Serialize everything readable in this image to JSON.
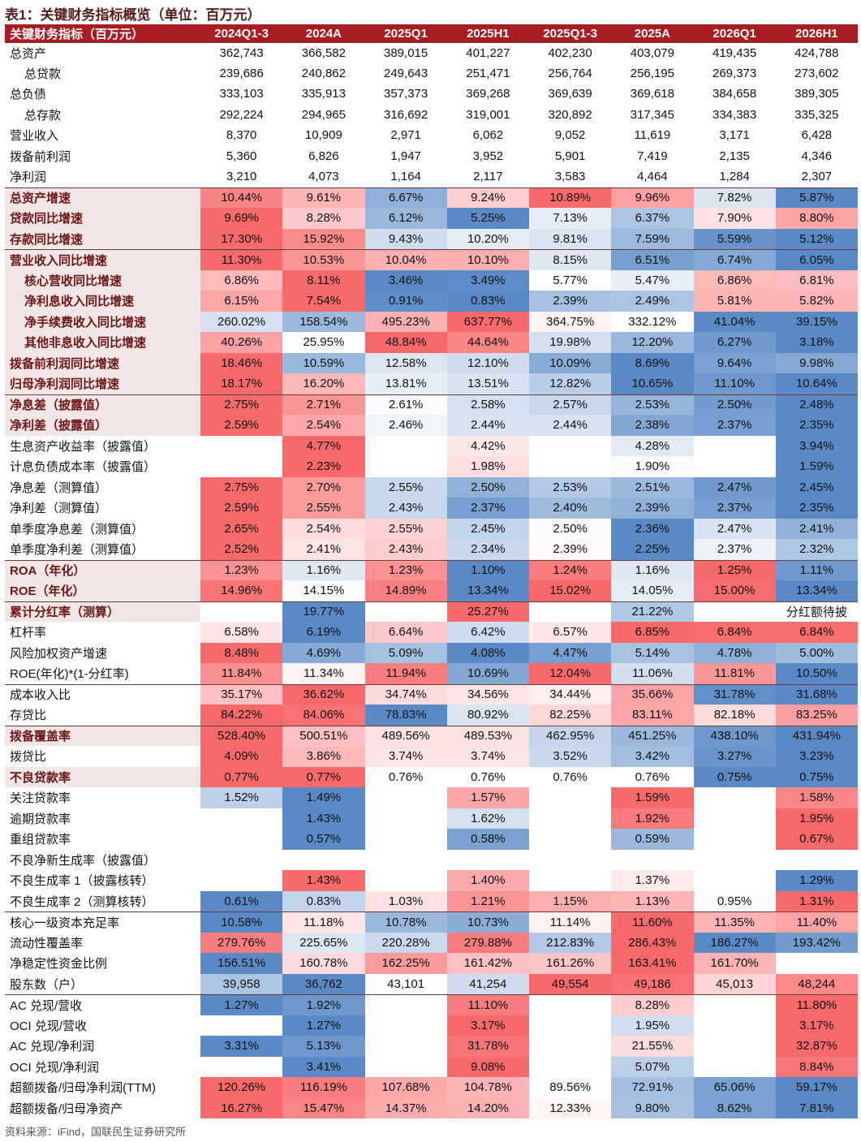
{
  "title": "表1：关键财务指标概览（单位：百万元）",
  "table": {
    "header": [
      "关键财务指标（百万元）",
      "2024Q1-3",
      "2024A",
      "2025Q1",
      "2025H1",
      "2025Q1-3",
      "2025A",
      "2026Q1",
      "2026H1"
    ],
    "sections": [
      {
        "heatmap": false,
        "rows": [
          {
            "label": "总资产",
            "cells": [
              "362,743",
              "366,582",
              "389,015",
              "401,227",
              "402,230",
              "403,079",
              "419,435",
              "424,788"
            ]
          },
          {
            "label": "总贷款",
            "indent": true,
            "cells": [
              "239,686",
              "240,862",
              "249,643",
              "251,471",
              "256,764",
              "256,195",
              "269,373",
              "273,602"
            ]
          },
          {
            "label": "总负债",
            "cells": [
              "333,103",
              "335,913",
              "357,373",
              "369,268",
              "369,639",
              "369,618",
              "384,658",
              "389,305"
            ]
          },
          {
            "label": "总存款",
            "indent": true,
            "cells": [
              "292,224",
              "294,965",
              "316,692",
              "319,001",
              "320,892",
              "317,345",
              "334,383",
              "335,325"
            ]
          },
          {
            "label": "营业收入",
            "cells": [
              "8,370",
              "10,909",
              "2,971",
              "6,062",
              "9,052",
              "11,619",
              "3,171",
              "6,428"
            ]
          },
          {
            "label": "拨备前利润",
            "cells": [
              "5,360",
              "6,826",
              "1,947",
              "3,952",
              "5,901",
              "7,419",
              "2,135",
              "4,346"
            ]
          },
          {
            "label": "净利润",
            "cells": [
              "3,210",
              "4,073",
              "1,164",
              "2,117",
              "3,583",
              "4,464",
              "1,284",
              "2,307"
            ]
          }
        ]
      },
      {
        "heatmap": true,
        "rows": [
          {
            "label": "总资产增速",
            "bold": true,
            "cells": [
              "10.44%",
              "9.61%",
              "6.67%",
              "9.24%",
              "10.89%",
              "9.96%",
              "7.82%",
              "5.87%"
            ]
          },
          {
            "label": "贷款同比增速",
            "bold": true,
            "cells": [
              "9.69%",
              "8.28%",
              "6.12%",
              "5.25%",
              "7.13%",
              "6.37%",
              "7.90%",
              "8.80%"
            ]
          },
          {
            "label": "存款同比增速",
            "bold": true,
            "cells": [
              "17.30%",
              "15.92%",
              "9.43%",
              "10.20%",
              "9.81%",
              "7.59%",
              "5.59%",
              "5.12%"
            ]
          }
        ]
      },
      {
        "heatmap": true,
        "rows": [
          {
            "label": "营业收入同比增速",
            "bold": true,
            "cells": [
              "11.30%",
              "10.53%",
              "10.04%",
              "10.10%",
              "8.15%",
              "6.51%",
              "6.74%",
              "6.05%"
            ]
          },
          {
            "label": "核心营收同比增速",
            "bold": true,
            "indent": true,
            "cells": [
              "6.86%",
              "8.11%",
              "3.46%",
              "3.49%",
              "5.77%",
              "5.47%",
              "6.86%",
              "6.81%"
            ]
          },
          {
            "label": "净利息收入同比增速",
            "bold": true,
            "indent": true,
            "cells": [
              "6.15%",
              "7.54%",
              "0.91%",
              "0.83%",
              "2.39%",
              "2.49%",
              "5.81%",
              "5.82%"
            ]
          },
          {
            "label": "净手续费收入同比增速",
            "bold": true,
            "indent": true,
            "cells": [
              "260.02%",
              "158.54%",
              "495.23%",
              "637.77%",
              "364.75%",
              "332.12%",
              "41.04%",
              "39.15%"
            ]
          },
          {
            "label": "其他非息收入同比增速",
            "bold": true,
            "indent": true,
            "cells": [
              "40.26%",
              "25.95%",
              "48.84%",
              "44.64%",
              "19.98%",
              "12.20%",
              "6.27%",
              "3.18%"
            ]
          },
          {
            "label": "拨备前利润同比增速",
            "bold": true,
            "cells": [
              "18.46%",
              "10.59%",
              "12.58%",
              "12.10%",
              "10.09%",
              "8.69%",
              "9.64%",
              "9.98%"
            ]
          },
          {
            "label": "归母净利润同比增速",
            "bold": true,
            "cells": [
              "18.17%",
              "16.20%",
              "13.81%",
              "13.51%",
              "12.82%",
              "10.65%",
              "11.10%",
              "10.64%"
            ]
          }
        ]
      },
      {
        "heatmap": true,
        "rows": [
          {
            "label": "净息差（披露值）",
            "bold": true,
            "cells": [
              "2.75%",
              "2.71%",
              "2.61%",
              "2.58%",
              "2.57%",
              "2.53%",
              "2.50%",
              "2.48%"
            ]
          },
          {
            "label": "净利差（披露值）",
            "bold": true,
            "cells": [
              "2.59%",
              "2.54%",
              "2.46%",
              "2.44%",
              "2.44%",
              "2.38%",
              "2.37%",
              "2.35%"
            ]
          },
          {
            "label": "生息资产收益率（披露值）",
            "cells": [
              null,
              "4.77%",
              null,
              "4.42%",
              null,
              "4.28%",
              null,
              "3.94%"
            ]
          },
          {
            "label": "计息负债成本率（披露值）",
            "cells": [
              null,
              "2.23%",
              null,
              "1.98%",
              null,
              "1.90%",
              null,
              "1.59%"
            ]
          },
          {
            "label": "净息差（测算值）",
            "cells": [
              "2.75%",
              "2.70%",
              "2.55%",
              "2.50%",
              "2.53%",
              "2.51%",
              "2.47%",
              "2.45%"
            ]
          },
          {
            "label": "净利差（测算值）",
            "cells": [
              "2.59%",
              "2.55%",
              "2.43%",
              "2.37%",
              "2.40%",
              "2.39%",
              "2.37%",
              "2.35%"
            ]
          },
          {
            "label": "单季度净息差（测算值）",
            "cells": [
              "2.65%",
              "2.54%",
              "2.55%",
              "2.45%",
              "2.50%",
              "2.36%",
              "2.47%",
              "2.41%"
            ]
          },
          {
            "label": "单季度净利差（测算值）",
            "cells": [
              "2.52%",
              "2.41%",
              "2.43%",
              "2.34%",
              "2.39%",
              "2.25%",
              "2.37%",
              "2.32%"
            ]
          }
        ]
      },
      {
        "heatmap": true,
        "rows": [
          {
            "label": "ROA（年化）",
            "bold": true,
            "cells": [
              "1.23%",
              "1.16%",
              "1.23%",
              "1.10%",
              "1.24%",
              "1.16%",
              "1.25%",
              "1.11%"
            ]
          },
          {
            "label": "ROE（年化）",
            "bold": true,
            "cells": [
              "14.96%",
              "14.15%",
              "14.89%",
              "13.34%",
              "15.02%",
              "14.05%",
              "15.00%",
              "13.34%"
            ]
          }
        ]
      },
      {
        "heatmap": true,
        "rows": [
          {
            "label": "累计分红率（测算）",
            "bold": true,
            "cells": [
              null,
              "19.77%",
              null,
              "25.27%",
              null,
              "21.22%",
              null,
              "分红额待披"
            ]
          },
          {
            "label": "杠杆率",
            "cells": [
              "6.58%",
              "6.19%",
              "6.64%",
              "6.42%",
              "6.57%",
              "6.85%",
              "6.84%",
              "6.84%"
            ]
          },
          {
            "label": "风险加权资产增速",
            "cells": [
              "8.48%",
              "4.69%",
              "5.09%",
              "4.08%",
              "4.47%",
              "5.14%",
              "4.78%",
              "5.00%"
            ]
          },
          {
            "label": "ROE(年化)*(1-分红率)",
            "cells": [
              "11.84%",
              "11.34%",
              "11.94%",
              "10.69%",
              "12.04%",
              "11.06%",
              "11.81%",
              "10.50%"
            ]
          }
        ]
      },
      {
        "heatmap": true,
        "rows": [
          {
            "label": "成本收入比",
            "cells": [
              "35.17%",
              "36.62%",
              "34.74%",
              "34.56%",
              "34.44%",
              "35.66%",
              "31.78%",
              "31.68%"
            ]
          },
          {
            "label": "存贷比",
            "cells": [
              "84.22%",
              "84.06%",
              "78.83%",
              "80.92%",
              "82.25%",
              "83.11%",
              "82.18%",
              "83.25%"
            ]
          }
        ]
      },
      {
        "heatmap": true,
        "rows": [
          {
            "label": "拨备覆盖率",
            "bold": true,
            "cells": [
              "528.40%",
              "500.51%",
              "489.56%",
              "489.53%",
              "462.95%",
              "451.25%",
              "438.10%",
              "431.94%"
            ]
          },
          {
            "label": "拨贷比",
            "cells": [
              "4.09%",
              "3.86%",
              "3.74%",
              "3.74%",
              "3.52%",
              "3.42%",
              "3.27%",
              "3.23%"
            ]
          },
          {
            "label": "不良贷款率",
            "bold": true,
            "cells": [
              "0.77%",
              "0.77%",
              "0.76%",
              "0.76%",
              "0.76%",
              "0.76%",
              "0.75%",
              "0.75%"
            ]
          },
          {
            "label": "关注贷款率",
            "cells": [
              "1.52%",
              "1.49%",
              null,
              "1.57%",
              null,
              "1.59%",
              null,
              "1.58%"
            ]
          },
          {
            "label": "逾期贷款率",
            "cells": [
              null,
              "1.43%",
              null,
              "1.62%",
              null,
              "1.92%",
              null,
              "1.95%"
            ]
          },
          {
            "label": "重组贷款率",
            "cells": [
              null,
              "0.57%",
              null,
              "0.58%",
              null,
              "0.59%",
              null,
              "0.67%"
            ]
          },
          {
            "label": "不良净新生成率（披露值）",
            "cells": [
              null,
              null,
              null,
              null,
              null,
              null,
              null,
              null
            ]
          },
          {
            "label": "不良生成率 1（披露核转）",
            "cells": [
              null,
              "1.43%",
              null,
              "1.40%",
              null,
              "1.37%",
              null,
              "1.29%"
            ]
          },
          {
            "label": "不良生成率 2（测算核转）",
            "cells": [
              "0.61%",
              "0.83%",
              "1.03%",
              "1.21%",
              "1.15%",
              "1.13%",
              "0.95%",
              "1.31%"
            ]
          }
        ]
      },
      {
        "heatmap": true,
        "rows": [
          {
            "label": "核心一级资本充足率",
            "cells": [
              "10.58%",
              "11.18%",
              "10.78%",
              "10.73%",
              "11.14%",
              "11.60%",
              "11.35%",
              "11.40%"
            ]
          },
          {
            "label": "流动性覆盖率",
            "cells": [
              "279.76%",
              "225.65%",
              "220.28%",
              "279.88%",
              "212.83%",
              "286.43%",
              "186.27%",
              "193.42%"
            ]
          },
          {
            "label": "净稳定性资金比例",
            "cells": [
              "156.51%",
              "160.78%",
              "162.25%",
              "161.42%",
              "161.26%",
              "163.41%",
              "161.70%",
              null
            ]
          },
          {
            "label": "股东数（户）",
            "cells": [
              "39,958",
              "36,762",
              "43,101",
              "41,254",
              "49,554",
              "49,186",
              "45,013",
              "48,244"
            ]
          }
        ]
      },
      {
        "heatmap": true,
        "rows": [
          {
            "label": "AC 兑现/营收",
            "cells": [
              "1.27%",
              "1.92%",
              null,
              "11.10%",
              null,
              "8.28%",
              null,
              "11.80%"
            ]
          },
          {
            "label": "OCI 兑现/营收",
            "cells": [
              null,
              "1.27%",
              null,
              "3.17%",
              null,
              "1.95%",
              null,
              "3.17%"
            ]
          },
          {
            "label": "AC 兑现/净利润",
            "cells": [
              "3.31%",
              "5.13%",
              null,
              "31.78%",
              null,
              "21.55%",
              null,
              "32.87%"
            ]
          },
          {
            "label": "OCI 兑现/净利润",
            "cells": [
              null,
              "3.41%",
              null,
              "9.08%",
              null,
              "5.07%",
              null,
              "8.84%"
            ]
          },
          {
            "label": "超额拨备/归母净利润(TTM)",
            "cells": [
              "120.26%",
              "116.19%",
              "107.68%",
              "104.78%",
              "89.56%",
              "72.91%",
              "65.06%",
              "59.17%"
            ]
          },
          {
            "label": "超额拨备/归母净资产",
            "cells": [
              "16.27%",
              "15.47%",
              "14.37%",
              "14.20%",
              "12.33%",
              "9.80%",
              "8.62%",
              "7.81%"
            ]
          }
        ]
      }
    ]
  },
  "source": "资料来源：iFind，国联民生证券研究所"
}
